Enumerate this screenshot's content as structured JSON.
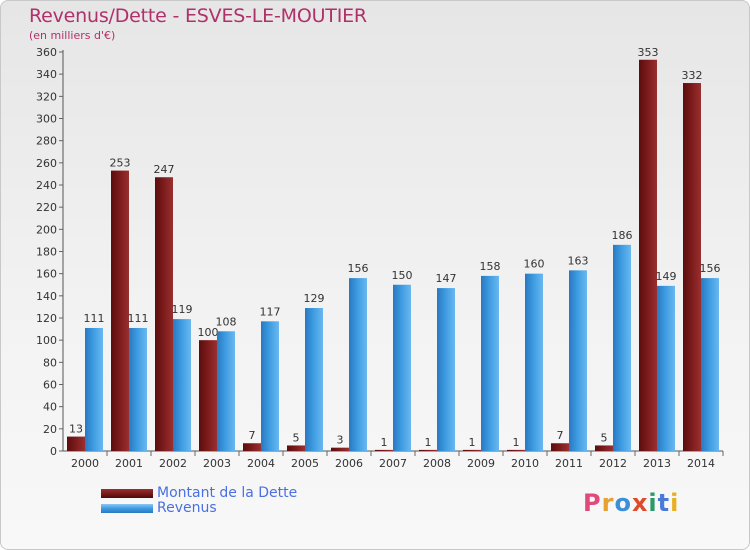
{
  "title": "Revenus/Dette - ESVES-LE-MOUTIER",
  "subtitle": "(en milliers d'€)",
  "logo_text": "Proxiti",
  "colors": {
    "dette": "#7a1a1a",
    "revenus": "#3c9be0",
    "title": "#b0306a",
    "logo": [
      "#e04a7a",
      "#e8a030",
      "#3a90d8",
      "#e04a2a",
      "#2a9a6a",
      "#4a7ad8",
      "#e8b020"
    ]
  },
  "chart_data": {
    "type": "bar",
    "categories": [
      "2000",
      "2001",
      "2002",
      "2003",
      "2004",
      "2005",
      "2006",
      "2007",
      "2008",
      "2009",
      "2010",
      "2011",
      "2012",
      "2013",
      "2014"
    ],
    "series": [
      {
        "name": "Montant de la Dette",
        "values": [
          13,
          253,
          247,
          100,
          7,
          5,
          3,
          1,
          1,
          1,
          1,
          7,
          5,
          353,
          332
        ]
      },
      {
        "name": "Revenus",
        "values": [
          111,
          111,
          119,
          108,
          117,
          129,
          156,
          150,
          147,
          158,
          160,
          163,
          186,
          149,
          156
        ]
      }
    ],
    "ylim": [
      0,
      360
    ],
    "yticks": [
      0,
      20,
      40,
      60,
      80,
      100,
      120,
      140,
      160,
      180,
      200,
      220,
      240,
      260,
      280,
      300,
      320,
      340,
      360
    ],
    "grid": false,
    "legend": "bottom-left"
  }
}
